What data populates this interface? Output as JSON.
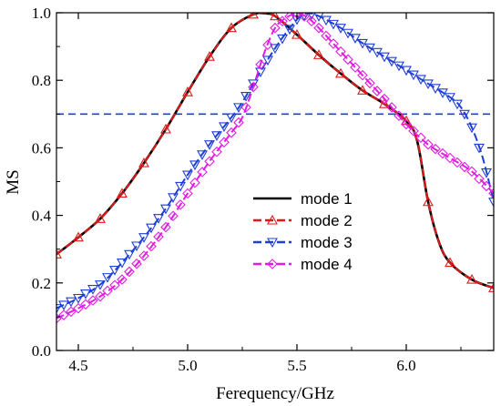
{
  "chart_data": {
    "type": "line",
    "title": "",
    "xlabel": "Ferequency/GHz",
    "ylabel": "MS",
    "xlim": [
      4.4,
      6.4
    ],
    "ylim": [
      0.0,
      1.0
    ],
    "xticks": [
      "4.5",
      "5.0",
      "5.5",
      "6.0"
    ],
    "xtick_values": [
      4.5,
      5.0,
      5.5,
      6.0
    ],
    "yticks": [
      "0.0",
      "0.2",
      "0.4",
      "0.6",
      "0.8",
      "1.0"
    ],
    "ytick_values": [
      0.0,
      0.2,
      0.4,
      0.6,
      0.8,
      1.0
    ],
    "grid": false,
    "legend_position": "center-right",
    "reference_line": {
      "y": 0.7,
      "color": "#1f3fd9",
      "style": "dashed"
    },
    "series": [
      {
        "name": "mode 1",
        "color": "#000000",
        "dash": "solid",
        "marker": "none",
        "x": [
          4.4,
          4.5,
          4.6,
          4.7,
          4.8,
          4.9,
          5.0,
          5.1,
          5.2,
          5.3,
          5.35,
          5.4,
          5.5,
          5.6,
          5.7,
          5.8,
          5.9,
          6.0,
          6.05,
          6.1,
          6.15,
          6.2,
          6.3,
          6.4
        ],
        "y": [
          0.285,
          0.335,
          0.39,
          0.465,
          0.555,
          0.655,
          0.765,
          0.87,
          0.955,
          0.995,
          0.998,
          0.99,
          0.935,
          0.875,
          0.82,
          0.77,
          0.73,
          0.68,
          0.62,
          0.44,
          0.32,
          0.26,
          0.21,
          0.185
        ]
      },
      {
        "name": "mode 2",
        "color": "#e01919",
        "dash": "dashed",
        "marker": "triangle-up",
        "x": [
          4.4,
          4.5,
          4.6,
          4.7,
          4.8,
          4.9,
          5.0,
          5.1,
          5.2,
          5.3,
          5.35,
          5.4,
          5.5,
          5.6,
          5.7,
          5.8,
          5.9,
          6.0,
          6.05,
          6.1,
          6.15,
          6.2,
          6.3,
          6.4
        ],
        "y": [
          0.285,
          0.335,
          0.39,
          0.465,
          0.555,
          0.655,
          0.765,
          0.87,
          0.955,
          0.995,
          0.998,
          0.99,
          0.935,
          0.875,
          0.82,
          0.77,
          0.73,
          0.68,
          0.62,
          0.44,
          0.32,
          0.26,
          0.21,
          0.185
        ]
      },
      {
        "name": "mode 3",
        "color": "#1f3fd9",
        "dash": "dashed",
        "marker": "triangle-down",
        "x": [
          4.4,
          4.5,
          4.6,
          4.7,
          4.8,
          4.9,
          5.0,
          5.1,
          5.2,
          5.25,
          5.3,
          5.4,
          5.5,
          5.55,
          5.6,
          5.7,
          5.8,
          5.9,
          6.0,
          6.1,
          6.2,
          6.25,
          6.3,
          6.35,
          6.4
        ],
        "y": [
          0.125,
          0.155,
          0.195,
          0.26,
          0.335,
          0.42,
          0.52,
          0.61,
          0.69,
          0.735,
          0.79,
          0.895,
          0.98,
          0.998,
          0.99,
          0.955,
          0.91,
          0.87,
          0.83,
          0.79,
          0.75,
          0.72,
          0.66,
          0.57,
          0.44
        ]
      },
      {
        "name": "mode 4",
        "color": "#e51ae5",
        "dash": "dashed",
        "marker": "diamond",
        "x": [
          4.4,
          4.5,
          4.6,
          4.7,
          4.8,
          4.9,
          5.0,
          5.1,
          5.2,
          5.25,
          5.3,
          5.35,
          5.4,
          5.45,
          5.5,
          5.55,
          5.6,
          5.7,
          5.8,
          5.9,
          6.0,
          6.1,
          6.2,
          6.3,
          6.4
        ],
        "y": [
          0.095,
          0.125,
          0.16,
          0.21,
          0.28,
          0.365,
          0.465,
          0.56,
          0.645,
          0.69,
          0.78,
          0.88,
          0.955,
          0.985,
          0.998,
          0.985,
          0.955,
          0.885,
          0.815,
          0.745,
          0.67,
          0.61,
          0.57,
          0.53,
          0.465
        ]
      }
    ]
  }
}
